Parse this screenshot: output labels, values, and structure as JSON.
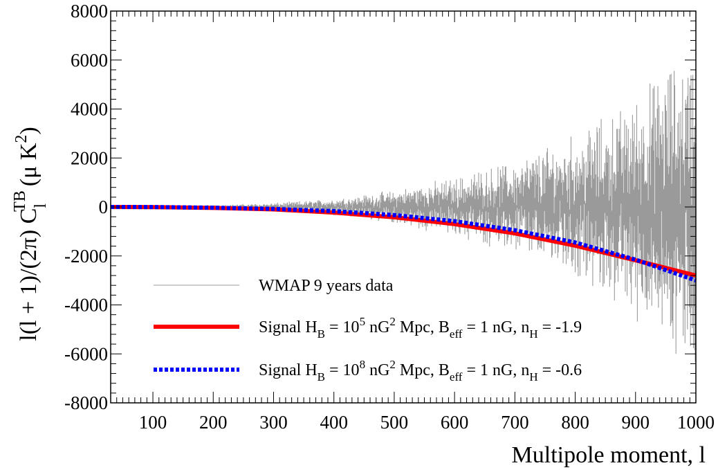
{
  "chart_data": {
    "type": "line",
    "title": "",
    "xlabel": "Multipole moment, l",
    "ylabel": {
      "main": "l(l + 1)/(2π) C",
      "sub": "l",
      "sup": "TB",
      "units_pre": "(μ K",
      "units_sup": "2",
      "units_post": ")"
    },
    "xlim": [
      30,
      1000
    ],
    "ylim": [
      -8000,
      8000
    ],
    "xticks": [
      100,
      200,
      300,
      400,
      500,
      600,
      700,
      800,
      900,
      1000
    ],
    "yticks": [
      -8000,
      -6000,
      -4000,
      -2000,
      0,
      2000,
      4000,
      6000,
      8000
    ],
    "legend_position": "bottom-left",
    "series": [
      {
        "name": "WMAP 9 years data",
        "kind": "noisy-data",
        "color": "#9a9a9a",
        "scatter_envelope": {
          "x": [
            30,
            200,
            300,
            400,
            500,
            600,
            700,
            800,
            850,
            900,
            950,
            1000
          ],
          "amplitude": [
            20,
            60,
            120,
            250,
            500,
            900,
            1400,
            2200,
            2700,
            3300,
            4200,
            5000
          ]
        }
      },
      {
        "name_parts": [
          "Signal H",
          "B",
          " = 10",
          "5",
          " nG",
          "2",
          " Mpc, B",
          "eff",
          " = 1 nG, n",
          "H",
          " = -1.9"
        ],
        "kind": "line",
        "color": "#ff0000",
        "style": "solid",
        "x": [
          30,
          100,
          200,
          300,
          400,
          500,
          600,
          700,
          800,
          900,
          1000
        ],
        "y": [
          0,
          -5,
          -40,
          -100,
          -230,
          -420,
          -700,
          -1080,
          -1580,
          -2180,
          -2800
        ]
      },
      {
        "name_parts": [
          "Signal H",
          "B",
          " = 10",
          "8",
          " nG",
          "2",
          " Mpc, B",
          "eff",
          " = 1 nG, n",
          "H",
          " = -0.6"
        ],
        "kind": "line",
        "color": "#0000ff",
        "style": "dotted",
        "x": [
          30,
          100,
          200,
          300,
          400,
          500,
          600,
          700,
          800,
          900,
          1000
        ],
        "y": [
          0,
          -4,
          -30,
          -80,
          -170,
          -330,
          -580,
          -950,
          -1450,
          -2150,
          -3000
        ]
      }
    ]
  }
}
